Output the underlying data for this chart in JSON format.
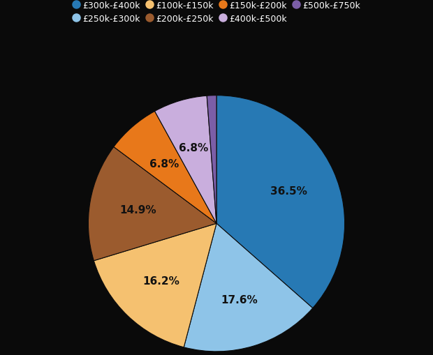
{
  "labels": [
    "£300k-£400k",
    "£250k-£300k",
    "£100k-£150k",
    "£200k-£250k",
    "£150k-£200k",
    "£400k-£500k",
    "£500k-£750k"
  ],
  "values": [
    36.5,
    17.6,
    16.2,
    14.9,
    6.8,
    6.8,
    1.2
  ],
  "colors": [
    "#2779B4",
    "#8EC4E8",
    "#F5C170",
    "#9B5B2E",
    "#E8781A",
    "#C9AEDD",
    "#7B5EA7"
  ],
  "background_color": "#0a0a0a",
  "text_color": "#ffffff",
  "label_text_color": "#111111",
  "legend_row1": [
    "£300k-£400k",
    "£250k-£300k",
    "£100k-£150k",
    "£200k-£250k"
  ],
  "legend_row2": [
    "£150k-£200k",
    "£400k-£500k",
    "£500k-£750k"
  ],
  "legend_colors": [
    "#2779B4",
    "#8EC4E8",
    "#F5C170",
    "#9B5B2E",
    "#E8781A",
    "#C9AEDD",
    "#7B5EA7"
  ],
  "figsize": [
    6.2,
    5.1
  ],
  "dpi": 100
}
